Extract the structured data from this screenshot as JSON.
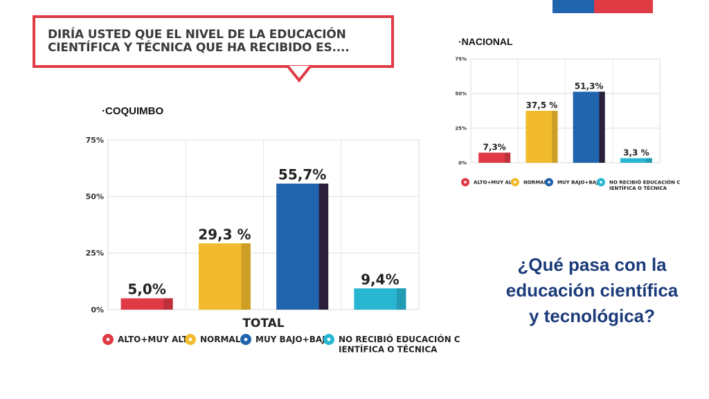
{
  "colors": {
    "red": "#e03a45",
    "yellow": "#f2bb2e",
    "blue": "#1f64ad",
    "cyan": "#29b6d2",
    "flag_blue": "#1f64ad",
    "flag_red": "#e03a45",
    "heading_blue": "#1b3a7a"
  },
  "question": "Diría usted que el nivel de la educación científica y técnica que ha recibido es....",
  "bottom_question": "¿Qué pasa con la educación científica y tecnológica?",
  "chart_data": [
    {
      "id": "coquimbo",
      "type": "bar",
      "title": "·COQUIMBO",
      "xlabel": "TOTAL",
      "ylim": [
        0,
        75
      ],
      "yticks": [
        "0%",
        "25%",
        "50%",
        "75%"
      ],
      "grid": true,
      "legend_position": "bottom",
      "categories": [
        "ALTO+MUY ALTO",
        "NORMAL",
        "MUY BAJO+BAJO",
        "NO RECIBIÓ EDUCACIÓN CIENTÍFICA O TÉCNICA"
      ],
      "values": [
        5.0,
        29.3,
        55.7,
        9.4
      ],
      "value_labels": [
        "5,0%",
        "29,3 %",
        "55,7%",
        "9,4%"
      ]
    },
    {
      "id": "nacional",
      "type": "bar",
      "title": "·NACIONAL",
      "ylim": [
        0,
        75
      ],
      "yticks": [
        "0%",
        "25%",
        "50%",
        "75%"
      ],
      "grid": true,
      "legend_position": "bottom",
      "categories": [
        "ALTO+MUY ALTO",
        "NORMAL",
        "MUY BAJO+BAJO",
        "NO RECIBIÓ EDUCACIÓN CIENTÍFICA O TÉCNICA"
      ],
      "values": [
        7.3,
        37.5,
        51.3,
        3.3
      ],
      "value_labels": [
        "7,3%",
        "37,5 %",
        "51,3%",
        "3,3 %"
      ]
    }
  ]
}
